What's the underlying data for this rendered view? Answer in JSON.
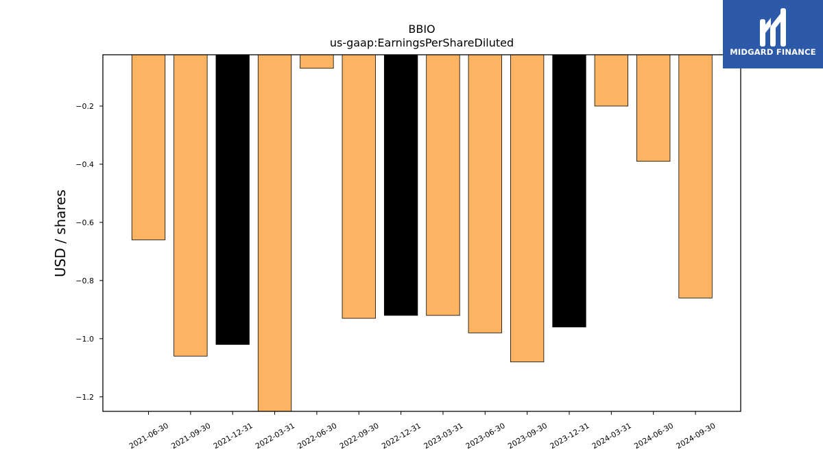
{
  "brand": {
    "name": "MIDGARD FINANCE",
    "icon": "midgard-logo-icon",
    "background": "#2d5aa8"
  },
  "chart_data": {
    "type": "bar",
    "title": "BBIO",
    "subtitle": "us-gaap:EarningsPerShareDiluted",
    "xlabel": "",
    "ylabel": "USD / shares",
    "categories": [
      "2021-06-30",
      "2021-09-30",
      "2021-12-31",
      "2022-03-31",
      "2022-06-30",
      "2022-09-30",
      "2022-12-31",
      "2023-03-31",
      "2023-06-30",
      "2023-09-30",
      "2023-12-31",
      "2024-03-31",
      "2024-06-30",
      "2024-09-30"
    ],
    "values": [
      -0.66,
      -1.06,
      -1.02,
      -1.25,
      -0.07,
      -0.93,
      -0.92,
      -0.92,
      -0.98,
      -1.08,
      -0.96,
      -0.2,
      -0.39,
      -0.86
    ],
    "bar_colors": [
      "#fdb462",
      "#fdb462",
      "#000000",
      "#fdb462",
      "#fdb462",
      "#fdb462",
      "#000000",
      "#fdb462",
      "#fdb462",
      "#fdb462",
      "#000000",
      "#fdb462",
      "#fdb462",
      "#fdb462"
    ],
    "ylim": [
      -1.25,
      -0.0235
    ],
    "yticks": [
      -0.2,
      -0.4,
      -0.6,
      -0.8,
      -1.0,
      -1.2
    ],
    "ytick_labels": [
      "−0.2",
      "−0.4",
      "−0.6",
      "−0.8",
      "−1.0",
      "−1.2"
    ],
    "grid": false,
    "legend": "none"
  }
}
